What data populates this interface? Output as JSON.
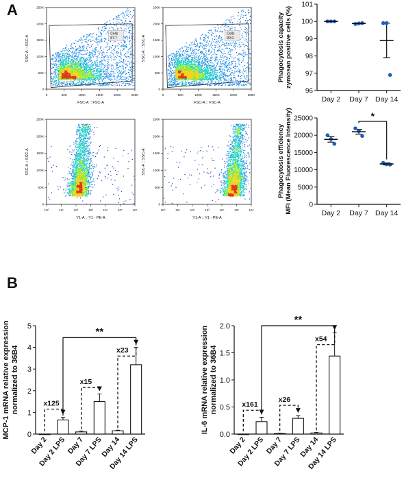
{
  "panel_labels": {
    "a": "A",
    "b": "B"
  },
  "flow_plots": [
    {
      "id": "p1",
      "xlabel": "FSC-A :: FSC-A",
      "ylabel": "SSC-A :: SSC-A",
      "gate_name": "Cells",
      "gate_value": "87.7",
      "x_ticks": [
        "0",
        "50K",
        "100K",
        "150K",
        "200K",
        "250K"
      ],
      "y_ticks": [
        "0",
        "50K",
        "100K",
        "150K",
        "200K",
        "250K"
      ]
    },
    {
      "id": "p2",
      "xlabel": "FSC-A :: FSC-A",
      "ylabel": "SSC-A :: SSC-A",
      "gate_name": "Cells",
      "gate_value": "90.9",
      "x_ticks": [
        "0",
        "50K",
        "100K",
        "150K",
        "200K",
        "250K"
      ],
      "y_ticks": [
        "0",
        "50K",
        "100K",
        "150K",
        "200K",
        "250K"
      ]
    },
    {
      "id": "p3",
      "xlabel": "Y1-A :: Y1 - PE-A",
      "ylabel": "SSC-A :: SSC-A",
      "x_ticks": [
        "10⁰",
        "10¹",
        "10²",
        "10³",
        "10⁴",
        "10⁵",
        "10⁶"
      ],
      "y_ticks": [
        "0",
        "50K",
        "100K",
        "150K",
        "200K",
        "250K"
      ]
    },
    {
      "id": "p4",
      "xlabel": "Y1-A :: Y1 - PE-A",
      "ylabel": "SSC-A :: SSC-A",
      "x_ticks": [
        "10⁰",
        "10¹",
        "10²",
        "10³",
        "10⁴",
        "10⁵",
        "10⁶"
      ],
      "y_ticks": [
        "0",
        "50K",
        "100K",
        "150K",
        "200K",
        "250K"
      ]
    }
  ],
  "chart_data": [
    {
      "id": "capacity",
      "type": "scatter",
      "ylabel_lines": [
        "Phagocytosis capacity",
        "zymosan positive cells (%)"
      ],
      "categories": [
        "Day 2",
        "Day 7",
        "Day 14"
      ],
      "ylim": [
        96,
        101
      ],
      "yticks": [
        "96",
        "97",
        "98",
        "99",
        "100",
        "101"
      ],
      "points": [
        [
          100.0,
          100.0,
          100.0
        ],
        [
          99.85,
          99.88,
          99.9
        ],
        [
          99.9,
          99.9,
          96.9
        ]
      ],
      "means": [
        100.0,
        99.88,
        98.9
      ],
      "sem": [
        0.0,
        0.02,
        1.0
      ],
      "point_color": "#1f5fbf"
    },
    {
      "id": "efficiency",
      "type": "scatter",
      "ylabel_lines": [
        "Phagocytosis efficiency",
        "MFI (Mean Fluorescence Intensity)"
      ],
      "categories": [
        "Day 2",
        "Day 7",
        "Day 14"
      ],
      "ylim": [
        0,
        25000
      ],
      "yticks": [
        "0",
        "5000",
        "10000",
        "15000",
        "20000",
        "25000"
      ],
      "points": [
        [
          20000,
          18900,
          17500
        ],
        [
          22000,
          21200,
          19800
        ],
        [
          12000,
          11600,
          11500
        ]
      ],
      "means": [
        18800,
        21000,
        11700
      ],
      "sem": [
        800,
        700,
        300
      ],
      "significance": "*",
      "point_color": "#1f5fbf"
    },
    {
      "id": "mcp1",
      "type": "bar",
      "ylabel_lines": [
        "MCP-1 mRNA relative expression",
        "normalized to 36B4"
      ],
      "categories": [
        "Day 2",
        "Day 2 LPS",
        "Day 7",
        "Day 7 LPS",
        "Day 14",
        "Day 14 LPS"
      ],
      "values": [
        0.0,
        0.65,
        0.1,
        1.5,
        0.15,
        3.2
      ],
      "errors": [
        0.0,
        0.12,
        0.04,
        0.35,
        0.03,
        0.8
      ],
      "ylim": [
        0,
        5
      ],
      "yticks": [
        "0",
        "1",
        "2",
        "3",
        "4",
        "5"
      ],
      "fold_labels": [
        "x125",
        "x15",
        "x23"
      ],
      "significance": "**"
    },
    {
      "id": "il6",
      "type": "bar",
      "ylabel_lines": [
        "IL-6 mRNA relative expression",
        "normalized to 36B4"
      ],
      "categories": [
        "Day 2",
        "Day 2 LPS",
        "Day 7",
        "Day 7 LPS",
        "Day 14",
        "Day 14 LPS"
      ],
      "values": [
        0.0,
        0.23,
        0.01,
        0.29,
        0.02,
        1.44
      ],
      "errors": [
        0.0,
        0.08,
        0.005,
        0.05,
        0.01,
        0.43
      ],
      "ylim": [
        0,
        2.0
      ],
      "yticks": [
        "0.0",
        "0.5",
        "1.0",
        "1.5",
        "2.0"
      ],
      "fold_labels": [
        "x161",
        "x26",
        "x54"
      ],
      "significance": "**"
    }
  ]
}
